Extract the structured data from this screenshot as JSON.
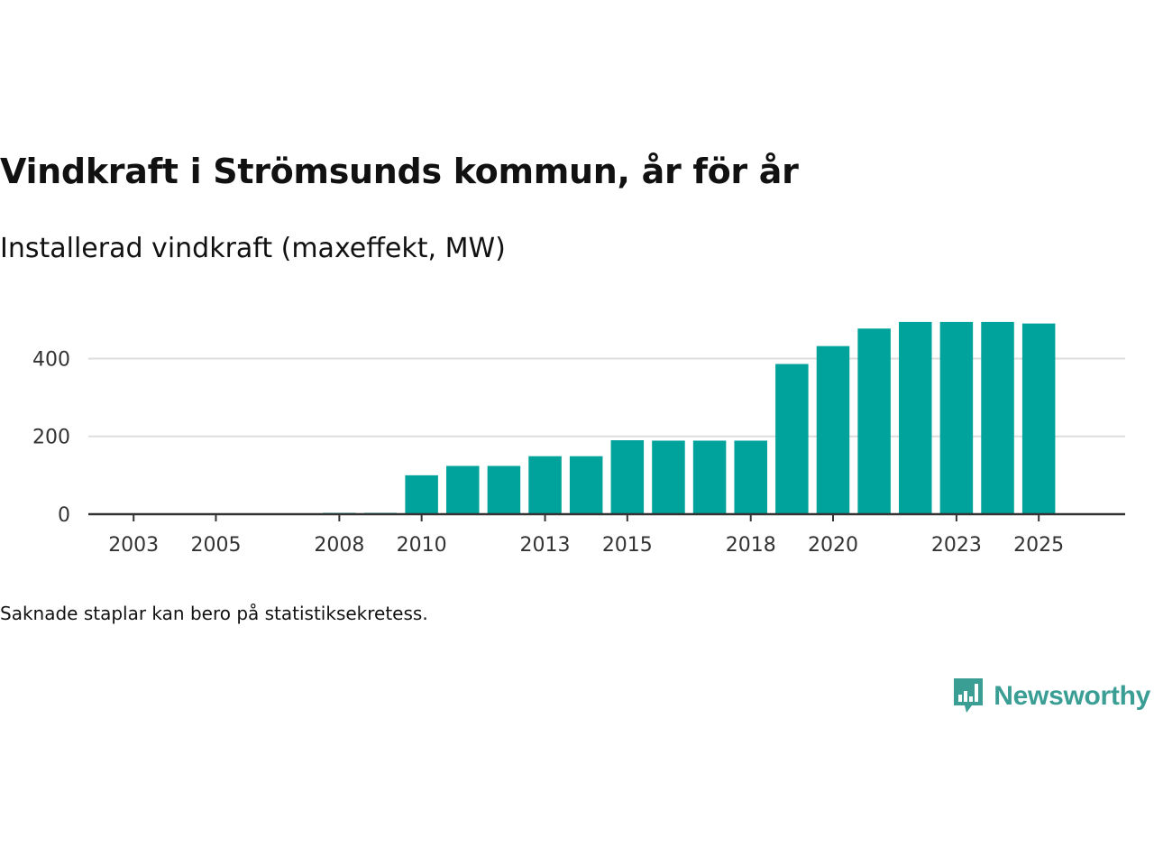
{
  "header": {
    "title": "Vindkraft i Strömsunds kommun, år för år",
    "subtitle": "Installerad vindkraft (maxeffekt, MW)"
  },
  "footer": {
    "note": "Saknade staplar kan bero på statistiksekretess.",
    "brand": "Newsworthy"
  },
  "colors": {
    "bar": "#00a39b",
    "grid": "#dddddd",
    "axis": "#333333",
    "brand": "#3a9e95"
  },
  "chart_data": {
    "type": "bar",
    "title": "Vindkraft i Strömsunds kommun, år för år",
    "subtitle": "Installerad vindkraft (maxeffekt, MW)",
    "xlabel": "",
    "ylabel": "",
    "grid": true,
    "ylim": [
      0,
      510
    ],
    "yticks": [
      0,
      200,
      400
    ],
    "xlim": [
      2001.9,
      2027.1
    ],
    "xticks": [
      2003,
      2005,
      2008,
      2010,
      2013,
      2015,
      2018,
      2020,
      2023,
      2025
    ],
    "categories": [
      2008,
      2009,
      2010,
      2011,
      2012,
      2013,
      2014,
      2015,
      2016,
      2017,
      2018,
      2019,
      2020,
      2021,
      2022,
      2023,
      2024,
      2025
    ],
    "values": [
      3,
      3,
      100,
      124,
      124,
      149,
      149,
      190,
      189,
      189,
      189,
      386,
      432,
      477,
      494,
      494,
      494,
      490
    ]
  }
}
